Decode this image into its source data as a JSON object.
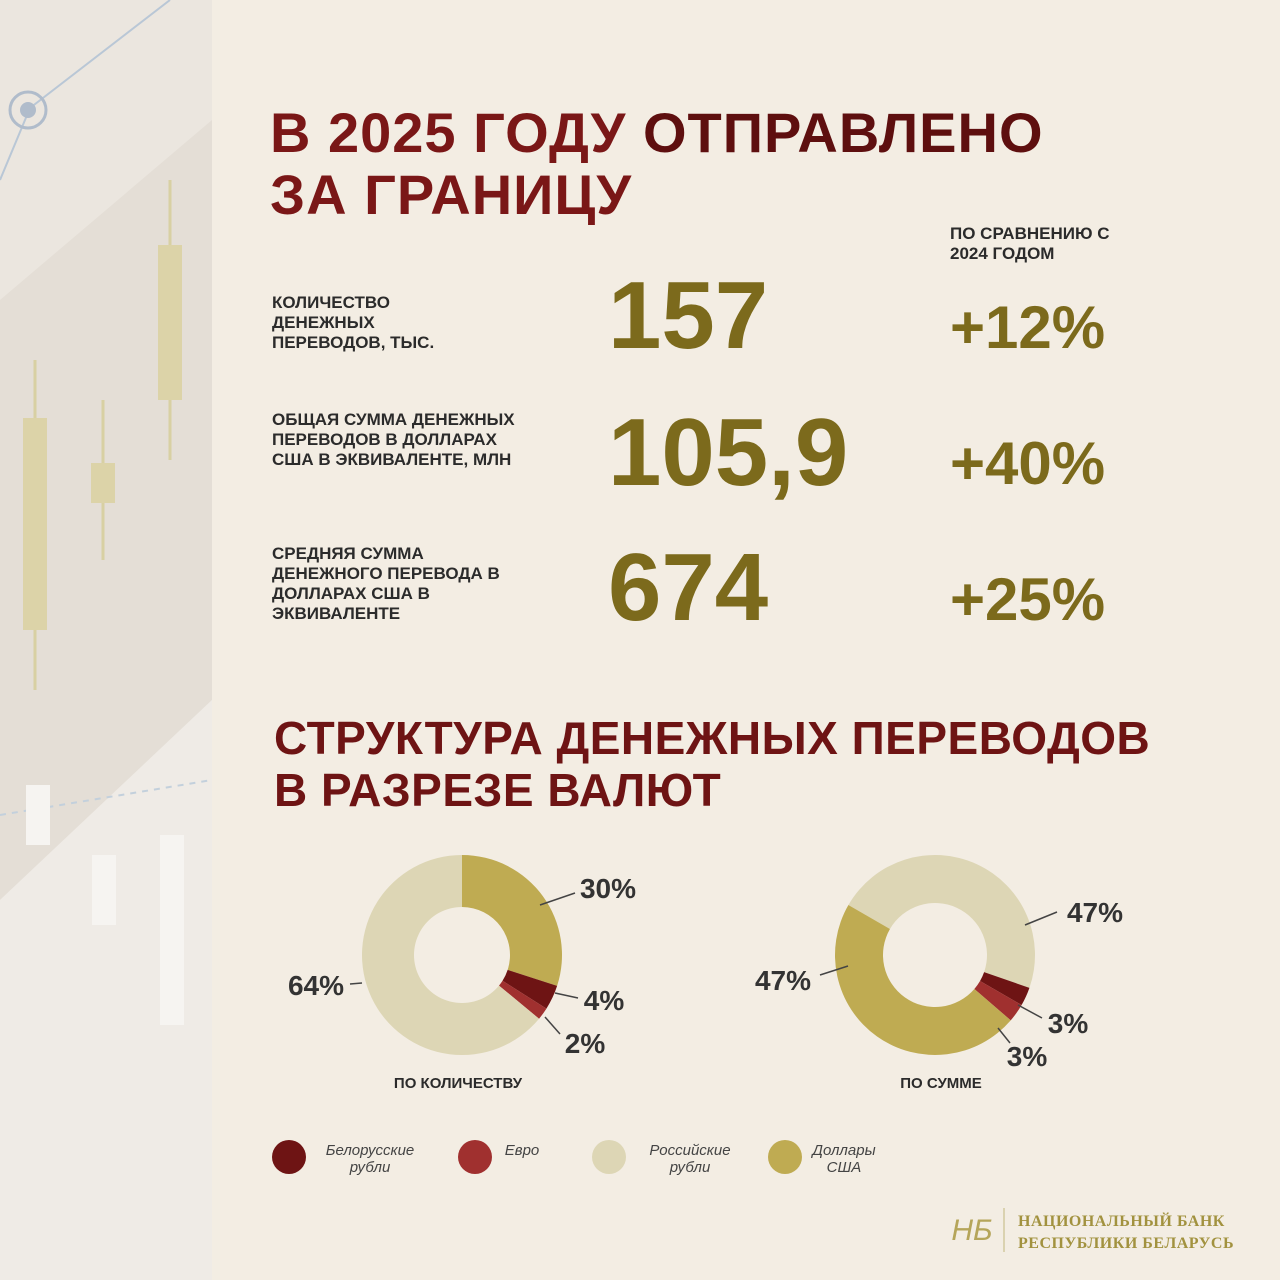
{
  "header": {
    "title_part1": "В 2025 ГОДУ",
    "title_part2": "ОТПРАВЛЕНО",
    "title_line2": "ЗА ГРАНИЦУ",
    "comparison_heading": "ПО СРАВНЕНИЮ С 2024 ГОДОМ"
  },
  "stats": [
    {
      "label": "КОЛИЧЕСТВО ДЕНЕЖНЫХ ПЕРЕВОДОВ, ТЫС.",
      "value": "157",
      "change": "+12%"
    },
    {
      "label": "ОБЩАЯ СУММА ДЕНЕЖНЫХ ПЕРЕВОДОВ В ДОЛЛАРАХ США В ЭКВИВАЛЕНТЕ, МЛН",
      "value": "105,9",
      "change": "+40%"
    },
    {
      "label": "СРЕДНЯЯ СУММА ДЕНЕЖНОГО ПЕРЕВОДА В ДОЛЛАРАХ США В ЭКВИВАЛЕНТЕ",
      "value": "674",
      "change": "+25%"
    }
  ],
  "section_title": "СТРУКТУРА ДЕНЕЖНЫХ ПЕРЕВОДОВ В РАЗРЕЗЕ ВАЛЮТ",
  "chart_data": [
    {
      "type": "donut",
      "title": "ПО КОЛИЧЕСТВУ",
      "values": [
        4,
        2,
        64,
        30
      ],
      "value_labels": [
        "4%",
        "2%",
        "64%",
        "30%"
      ],
      "colors": [
        "#6e1414",
        "#a0302f",
        "#ddd6b5",
        "#bfab52"
      ]
    },
    {
      "type": "donut",
      "title": "ПО СУММЕ",
      "values": [
        3,
        3,
        47,
        47
      ],
      "value_labels": [
        "3%",
        "3%",
        "47%",
        "47%"
      ],
      "colors": [
        "#6e1414",
        "#a0302f",
        "#ddd6b5",
        "#bfab52"
      ]
    }
  ],
  "legend": {
    "items": [
      {
        "label": "Белорусские рубли",
        "color": "#6e1414"
      },
      {
        "label": "Евро",
        "color": "#a0302f"
      },
      {
        "label": "Российские рубли",
        "color": "#ddd6b5"
      },
      {
        "label": "Доллары США",
        "color": "#bfab52"
      }
    ]
  },
  "footer": {
    "bank_name": "НАЦИОНАЛЬНЫЙ БАНК РЕСПУБЛИКИ БЕЛАРУСЬ"
  }
}
